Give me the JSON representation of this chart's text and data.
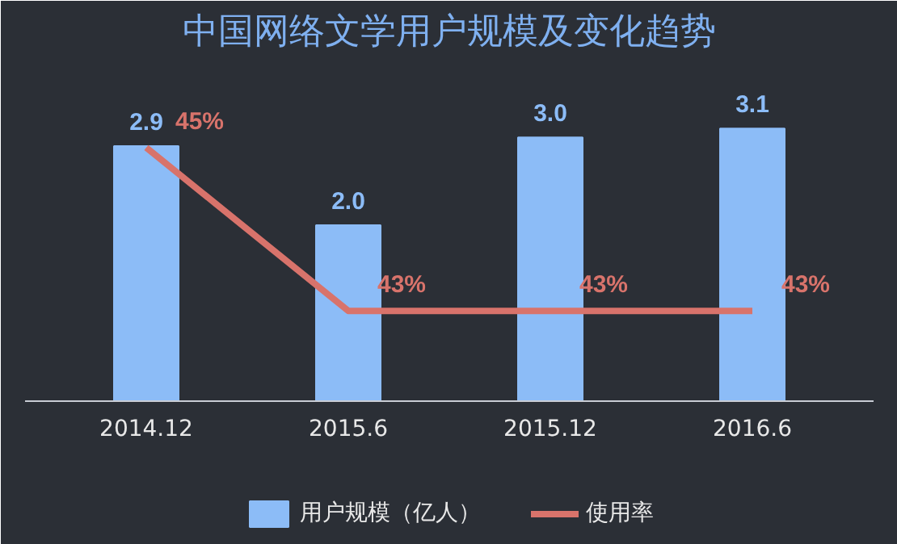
{
  "chart_data": {
    "type": "bar",
    "title": "中国网络文学用户规模及变化趋势",
    "categories": [
      "2014.12",
      "2015.6",
      "2015.12",
      "2016.6"
    ],
    "series": [
      {
        "name": "用户规模（亿人）",
        "color": "#8cbcf7",
        "values": [
          2.9,
          2.0,
          3.0,
          3.1
        ],
        "value_labels": [
          "2.9",
          "2.0",
          "3.0",
          "3.1"
        ]
      },
      {
        "name": "使用率",
        "type": "line",
        "axis": "y2",
        "color": "#d8736b",
        "values": [
          45,
          43,
          43,
          43
        ],
        "value_labels": [
          "45%",
          "43%",
          "43%",
          "43%"
        ]
      }
    ],
    "tick_labels": "x",
    "data_labels": true,
    "legend": "bottom"
  }
}
